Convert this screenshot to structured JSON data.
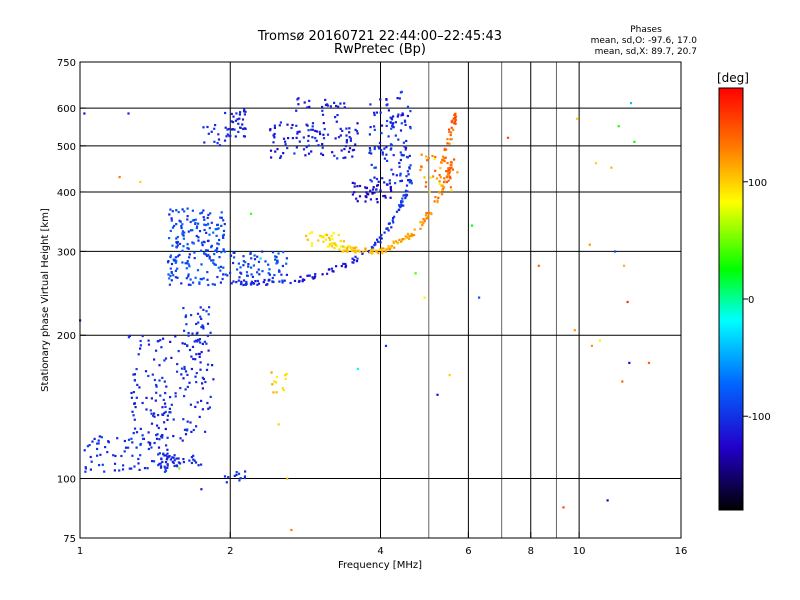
{
  "chart_data": {
    "type": "scatter",
    "title": "Tromsø 20160721 22:44:00–22:45:43",
    "subtitle": "RwPretec (Bp)",
    "stats": {
      "title": "Phases",
      "line1": "mean, sd,O: -97.6, 17.0",
      "line2": "mean, sd,X:  89.7, 20.7"
    },
    "xlabel": "Frequency [MHz]",
    "ylabel": "Stationary phase Virtual Height [km]",
    "x_scale": "log",
    "y_scale": "log",
    "xlim": [
      1,
      16
    ],
    "ylim": [
      75,
      750
    ],
    "x_ticks": [
      1,
      2,
      4,
      6,
      8,
      10,
      16
    ],
    "x_tick_labels": [
      "1",
      "2",
      "4",
      "6",
      "8",
      "10",
      "16"
    ],
    "x_grid": [
      2,
      4,
      6,
      8,
      10
    ],
    "x_minor_grid": [
      5,
      7,
      9
    ],
    "y_ticks": [
      75,
      100,
      200,
      300,
      400,
      500,
      600,
      750
    ],
    "y_tick_labels": [
      "75",
      "100",
      "200",
      "300",
      "400",
      "500",
      "600",
      "750"
    ],
    "y_grid": [
      100,
      200,
      300,
      400,
      500,
      600
    ],
    "grid": true,
    "colorbar": {
      "label": "[deg]",
      "range": [
        -180,
        180
      ],
      "tick_values": [
        100,
        0,
        -100
      ],
      "tick_labels": [
        "100",
        "0",
        "-100"
      ]
    },
    "series": [
      {
        "shape": "curve",
        "x": [
          2.02,
          2.3,
          2.7,
          3.1,
          3.5,
          3.85,
          4.15,
          4.4,
          4.6
        ],
        "y": [
          258,
          257,
          261,
          270,
          285,
          305,
          335,
          375,
          425
        ],
        "phase": [
          -110,
          -105,
          -115,
          -120,
          -110,
          -105,
          -100,
          -95,
          -95
        ],
        "noise": 0.008,
        "count": 130
      },
      {
        "shape": "curve",
        "x": [
          3.0,
          3.3,
          3.7,
          4.1,
          4.5,
          4.9,
          5.3,
          5.6
        ],
        "y": [
          320,
          305,
          300,
          302,
          320,
          350,
          400,
          470
        ],
        "phase": [
          90,
          100,
          110,
          110,
          115,
          120,
          130,
          140
        ],
        "noise": 0.01,
        "count": 150
      },
      {
        "shape": "curve",
        "x": [
          5.2,
          5.4,
          5.55,
          5.65
        ],
        "y": [
          420,
          480,
          540,
          590
        ],
        "phase": [
          120,
          130,
          140,
          145
        ],
        "noise": 0.01,
        "count": 40
      },
      {
        "shape": "cluster",
        "x": [
          1.5,
          1.95
        ],
        "y": [
          255,
          370
        ],
        "phase": [
          -110,
          -70
        ],
        "count": 200
      },
      {
        "shape": "cluster",
        "x": [
          1.95,
          2.6
        ],
        "y": [
          260,
          300
        ],
        "phase": [
          -110,
          -70
        ],
        "count": 70
      },
      {
        "shape": "cluster",
        "x": [
          1.25,
          1.85
        ],
        "y": [
          120,
          200
        ],
        "phase": [
          -120,
          -90
        ],
        "count": 170
      },
      {
        "shape": "cluster",
        "x": [
          1.02,
          1.5
        ],
        "y": [
          103,
          125
        ],
        "phase": [
          -115,
          -90
        ],
        "count": 90
      },
      {
        "shape": "cluster",
        "x": [
          1.45,
          1.75
        ],
        "y": [
          106,
          112
        ],
        "phase": [
          -110,
          -100
        ],
        "count": 40
      },
      {
        "shape": "cluster",
        "x": [
          1.6,
          1.85
        ],
        "y": [
          190,
          230
        ],
        "phase": [
          -110,
          -90
        ],
        "count": 30
      },
      {
        "shape": "cluster",
        "x": [
          1.95,
          2.15
        ],
        "y": [
          520,
          600
        ],
        "phase": [
          -115,
          -100
        ],
        "count": 35
      },
      {
        "shape": "cluster",
        "x": [
          1.75,
          2.0
        ],
        "y": [
          500,
          560
        ],
        "phase": [
          -110,
          -95
        ],
        "count": 15
      },
      {
        "shape": "cluster",
        "x": [
          2.4,
          3.6
        ],
        "y": [
          470,
          560
        ],
        "phase": [
          -130,
          -90
        ],
        "count": 100
      },
      {
        "shape": "cluster",
        "x": [
          2.7,
          3.4
        ],
        "y": [
          560,
          630
        ],
        "phase": [
          -120,
          -100
        ],
        "count": 25
      },
      {
        "shape": "cluster",
        "x": [
          3.5,
          4.2
        ],
        "y": [
          380,
          420
        ],
        "phase": [
          -140,
          -110
        ],
        "count": 40
      },
      {
        "shape": "cluster",
        "x": [
          3.8,
          4.6
        ],
        "y": [
          400,
          650
        ],
        "phase": [
          -120,
          -80
        ],
        "count": 120
      },
      {
        "shape": "cluster",
        "x": [
          2.8,
          3.4
        ],
        "y": [
          305,
          330
        ],
        "phase": [
          80,
          110
        ],
        "count": 30
      },
      {
        "shape": "cluster",
        "x": [
          4.8,
          5.6
        ],
        "y": [
          400,
          480
        ],
        "phase": [
          90,
          150
        ],
        "count": 30
      },
      {
        "shape": "cluster",
        "x": [
          2.4,
          2.6
        ],
        "y": [
          150,
          170
        ],
        "phase": [
          90,
          120
        ],
        "count": 12
      },
      {
        "shape": "cluster",
        "x": [
          1.95,
          2.2
        ],
        "y": [
          97,
          104
        ],
        "phase": [
          -110,
          -90
        ],
        "count": 12
      },
      {
        "shape": "scatter",
        "x": [
          1.0,
          1.02,
          1.2,
          1.25,
          1.32,
          1.58,
          1.75,
          2.2,
          2.3,
          2.5,
          2.6,
          2.65,
          3.6,
          4.1,
          4.7,
          4.9,
          5.2,
          5.5,
          5.7,
          6.1,
          6.3,
          7.2,
          8.3,
          9.3,
          9.8,
          9.9,
          10.5,
          10.6,
          10.8,
          11.0,
          11.4,
          11.6,
          11.8,
          12.0,
          12.2,
          12.3,
          12.5,
          12.6,
          12.7,
          12.9,
          13.8
        ],
        "y": [
          215,
          585,
          430,
          585,
          420,
          105,
          95,
          360,
          290,
          130,
          100,
          78,
          170,
          190,
          270,
          240,
          150,
          165,
          440,
          340,
          240,
          520,
          280,
          87,
          205,
          570,
          310,
          190,
          460,
          195,
          90,
          450,
          300,
          550,
          160,
          280,
          235,
          175,
          615,
          510,
          175
        ],
        "phase": [
          -100,
          -120,
          130,
          -110,
          100,
          50,
          -110,
          40,
          -30,
          100,
          110,
          130,
          -20,
          -100,
          40,
          90,
          -120,
          100,
          120,
          20,
          -80,
          150,
          140,
          150,
          120,
          100,
          120,
          120,
          100,
          90,
          -130,
          110,
          -90,
          30,
          140,
          110,
          160,
          -120,
          -40,
          20,
          140
        ],
        "count": 41
      }
    ]
  }
}
